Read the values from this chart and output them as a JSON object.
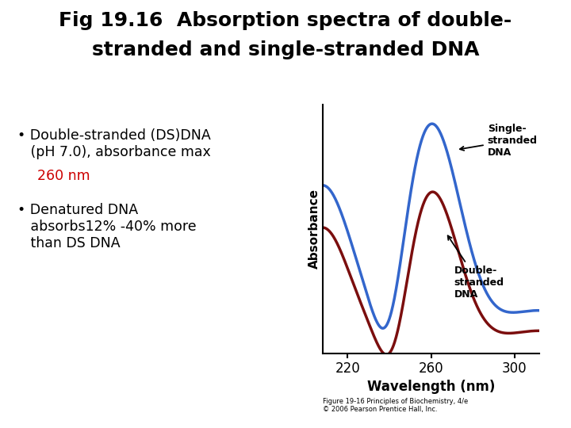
{
  "title_line1": "Fig 19.16  Absorption spectra of double-",
  "title_line2": "stranded and single-stranded DNA",
  "title_fontsize": 18,
  "title_fontweight": "bold",
  "bg_color": "#ffffff",
  "xlabel": "Wavelength (nm)",
  "ylabel": "Absorbance",
  "xticks": [
    220,
    260,
    300
  ],
  "xlim": [
    208,
    312
  ],
  "ylim": [
    0.0,
    1.05
  ],
  "ss_color": "#3366cc",
  "ds_color": "#7b0e0e",
  "label_ss": "Single-\nstranded\nDNA",
  "label_ds": "Double-\nstranded\nDNA",
  "caption": "Figure 19-16 Principles of Biochemistry, 4/e\n© 2006 Pearson Prentice Hall, Inc."
}
